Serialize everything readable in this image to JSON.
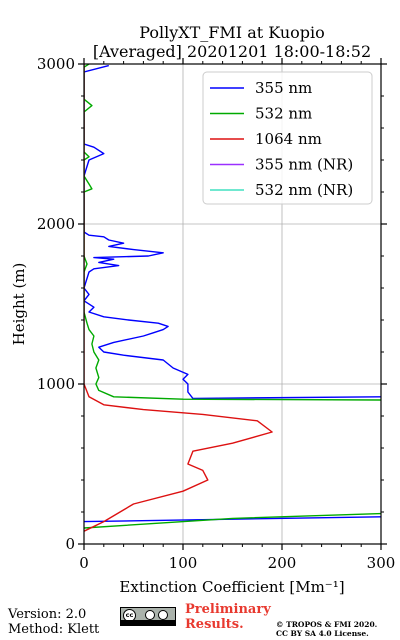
{
  "chart_data": {
    "type": "line",
    "title": "PollyXT_FMI at Kuopio",
    "subtitle": "[Averaged] 20201201 18:00-18:52",
    "xlabel": "Extinction Coefficient [Mm⁻¹]",
    "ylabel": "Height (m)",
    "xlim": [
      0,
      300
    ],
    "ylim": [
      0,
      3000
    ],
    "x_ticks": [
      0,
      100,
      200,
      300
    ],
    "y_ticks": [
      0,
      1000,
      2000,
      3000
    ],
    "grid": true,
    "legend_position": "top-right",
    "series": [
      {
        "name": "355 nm",
        "color": "#0000ff",
        "points": [
          [
            300,
            170
          ],
          [
            150,
            150
          ],
          [
            0,
            140
          ]
        ],
        "segments": [
          [
            [
              300,
              170
            ],
            [
              0,
              140
            ]
          ],
          [
            [
              300,
              920
            ],
            [
              110,
              910
            ],
            [
              105,
              950
            ],
            [
              105,
              1000
            ],
            [
              100,
              1030
            ],
            [
              105,
              1060
            ],
            [
              90,
              1100
            ],
            [
              80,
              1150
            ],
            [
              40,
              1180
            ],
            [
              20,
              1200
            ],
            [
              15,
              1230
            ],
            [
              30,
              1260
            ],
            [
              60,
              1300
            ],
            [
              70,
              1320
            ],
            [
              80,
              1340
            ],
            [
              85,
              1360
            ],
            [
              75,
              1380
            ],
            [
              45,
              1400
            ],
            [
              20,
              1420
            ],
            [
              5,
              1450
            ],
            [
              10,
              1480
            ],
            [
              0,
              1520
            ],
            [
              5,
              1560
            ],
            [
              0,
              1600
            ],
            [
              5,
              1700
            ],
            [
              10,
              1720
            ],
            [
              35,
              1740
            ],
            [
              15,
              1760
            ],
            [
              30,
              1780
            ],
            [
              10,
              1790
            ],
            [
              65,
              1800
            ],
            [
              80,
              1820
            ],
            [
              50,
              1840
            ],
            [
              25,
              1860
            ],
            [
              40,
              1880
            ],
            [
              25,
              1900
            ],
            [
              20,
              1920
            ],
            [
              5,
              1930
            ],
            [
              0,
              1950
            ],
            [
              0,
              2300
            ],
            [
              5,
              2400
            ],
            [
              20,
              2440
            ],
            [
              10,
              2480
            ],
            [
              0,
              2500
            ],
            [
              0,
              2950
            ],
            [
              25,
              2990
            ]
          ]
        ]
      },
      {
        "name": "532 nm",
        "color": "#00aa00",
        "segments": [
          [
            [
              300,
              190
            ],
            [
              150,
              160
            ],
            [
              0,
              100
            ]
          ],
          [
            [
              300,
              900
            ],
            [
              100,
              905
            ],
            [
              30,
              920
            ],
            [
              15,
              960
            ],
            [
              12,
              1000
            ],
            [
              15,
              1040
            ],
            [
              12,
              1100
            ],
            [
              15,
              1150
            ],
            [
              10,
              1200
            ],
            [
              8,
              1250
            ],
            [
              10,
              1300
            ],
            [
              5,
              1340
            ],
            [
              3,
              1380
            ],
            [
              0,
              1450
            ],
            [
              0,
              1700
            ],
            [
              3,
              1750
            ],
            [
              0,
              1800
            ],
            [
              0,
              2200
            ],
            [
              8,
              2220
            ],
            [
              5,
              2250
            ],
            [
              0,
              2300
            ],
            [
              0,
              2400
            ],
            [
              5,
              2420
            ],
            [
              0,
              2450
            ],
            [
              0,
              2700
            ],
            [
              8,
              2740
            ],
            [
              0,
              2780
            ],
            [
              0,
              2980
            ],
            [
              5,
              3000
            ]
          ]
        ]
      },
      {
        "name": "1064 nm",
        "color": "#dd1111",
        "segments": [
          [
            [
              0,
              80
            ],
            [
              20,
              140
            ],
            [
              50,
              250
            ],
            [
              100,
              330
            ],
            [
              125,
              400
            ],
            [
              120,
              460
            ],
            [
              105,
              500
            ],
            [
              110,
              580
            ],
            [
              150,
              630
            ],
            [
              190,
              700
            ],
            [
              175,
              770
            ],
            [
              120,
              810
            ],
            [
              60,
              840
            ],
            [
              20,
              870
            ],
            [
              5,
              920
            ],
            [
              0,
              1000
            ],
            [
              0,
              3000
            ]
          ]
        ]
      },
      {
        "name": "355 nm (NR)",
        "color": "#9b30ff",
        "segments": []
      },
      {
        "name": "532 nm (NR)",
        "color": "#40e0c0",
        "segments": []
      }
    ]
  },
  "footer": {
    "version": "Version: 2.0",
    "method": "Method: Klett",
    "preliminary_line1": "Preliminary",
    "preliminary_line2": "Results.",
    "copyright_line1": "© TROPOS & FMI 2020.",
    "copyright_line2": "CC BY SA 4.0 License.",
    "license_badge": "cc-by-sa-icon"
  }
}
